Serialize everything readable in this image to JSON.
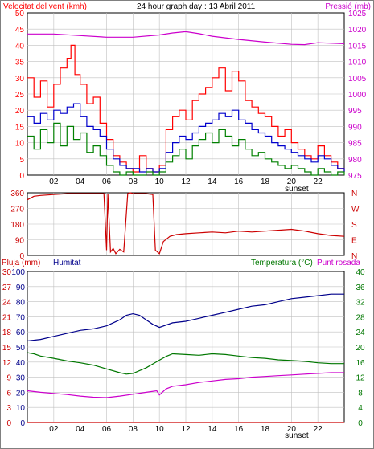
{
  "page": {
    "title": "24 hour graph day : 13 Abril 2011",
    "background": "#ffffff"
  },
  "colors": {
    "wind": "#ff0000",
    "wind_avg": "#0000cc",
    "wind_low": "#008000",
    "pressure": "#cc00cc",
    "direction": "#cc0000",
    "humidity": "#00008b",
    "temperature": "#007700",
    "dewpoint": "#cc00cc",
    "rain": "#cc0000",
    "grid": "#c0c0c0"
  },
  "chart_data": [
    {
      "type": "line",
      "name": "wind-pressure",
      "title": "24 hour graph day : 13 Abril 2011",
      "left_label": "Velocitat del vent (kmh)",
      "right_label": "Pressió (mb)",
      "left_ylim": [
        0,
        50
      ],
      "left_ticks": [
        "0",
        "5",
        "10",
        "15",
        "20",
        "25",
        "30",
        "35",
        "40",
        "45",
        "50"
      ],
      "right_ylim": [
        975,
        1025
      ],
      "right_ticks": [
        "975",
        "980",
        "985",
        "990",
        "995",
        "1000",
        "1005",
        "1010",
        "1015",
        "1020",
        "1025"
      ],
      "xlim": [
        0,
        24
      ],
      "x_ticks": [
        "02",
        "04",
        "06",
        "08",
        "10",
        "12",
        "14",
        "16",
        "18",
        "20",
        "22"
      ],
      "x_tick_positions": [
        2,
        4,
        6,
        8,
        10,
        12,
        14,
        16,
        18,
        20,
        22
      ],
      "marker_label": "sunset",
      "marker_x": 20.4,
      "grid": true,
      "series": [
        {
          "axis": "left",
          "color": "#ff0000",
          "x": [
            0,
            0.5,
            1,
            1.5,
            2,
            2.5,
            3,
            3.3,
            3.6,
            4,
            4.5,
            5,
            5.5,
            6,
            6.5,
            7,
            7.5,
            8,
            8.5,
            9,
            9.5,
            10,
            10.5,
            11,
            11.5,
            12,
            12.5,
            13,
            13.5,
            14,
            14.5,
            15,
            15.5,
            16,
            16.5,
            17,
            17.5,
            18,
            18.5,
            19,
            19.5,
            20,
            20.5,
            21,
            21.5,
            22,
            22.5,
            23,
            23.5,
            24
          ],
          "y": [
            30,
            24,
            29,
            21,
            28,
            33,
            36,
            40,
            31,
            28,
            22,
            24,
            16,
            11,
            6,
            4,
            2,
            1,
            6,
            2,
            1,
            3,
            14,
            18,
            20,
            17,
            23,
            25,
            27,
            30,
            33,
            26,
            32,
            29,
            23,
            21,
            19,
            18,
            15,
            12,
            14,
            10,
            8,
            6,
            5,
            9,
            6,
            4,
            2,
            1
          ]
        },
        {
          "axis": "left",
          "color": "#0000cc",
          "x": [
            0,
            0.5,
            1,
            1.5,
            2,
            2.5,
            3,
            3.5,
            4,
            4.5,
            5,
            5.5,
            6,
            6.5,
            7,
            7.5,
            8,
            8.5,
            9,
            9.5,
            10,
            10.5,
            11,
            11.5,
            12,
            12.5,
            13,
            13.5,
            14,
            14.5,
            15,
            15.5,
            16,
            16.5,
            17,
            17.5,
            18,
            18.5,
            19,
            19.5,
            20,
            20.5,
            21,
            21.5,
            22,
            22.5,
            23,
            23.5,
            24
          ],
          "y": [
            18,
            16,
            19,
            17,
            20,
            19,
            21,
            22,
            18,
            15,
            14,
            12,
            8,
            5,
            3,
            2,
            2,
            1,
            2,
            1,
            2,
            7,
            10,
            12,
            11,
            13,
            15,
            16,
            17,
            19,
            18,
            20,
            17,
            16,
            14,
            13,
            12,
            10,
            9,
            8,
            7,
            6,
            5,
            4,
            6,
            5,
            3,
            2,
            1
          ]
        },
        {
          "axis": "left",
          "color": "#008000",
          "x": [
            0,
            0.5,
            1,
            1.5,
            2,
            2.5,
            3,
            3.5,
            4,
            4.5,
            5,
            5.5,
            6,
            6.5,
            7,
            7.5,
            8,
            8.5,
            9,
            9.5,
            10,
            10.5,
            11,
            11.5,
            12,
            12.5,
            13,
            13.5,
            14,
            14.5,
            15,
            15.5,
            16,
            16.5,
            17,
            17.5,
            18,
            18.5,
            19,
            19.5,
            20,
            20.5,
            21,
            21.5,
            22,
            22.5,
            23,
            23.5,
            24
          ],
          "y": [
            12,
            8,
            14,
            10,
            16,
            9,
            15,
            11,
            13,
            7,
            9,
            6,
            3,
            1,
            0,
            1,
            0,
            0,
            1,
            0,
            1,
            4,
            6,
            8,
            5,
            9,
            11,
            13,
            10,
            14,
            12,
            9,
            11,
            8,
            6,
            7,
            5,
            4,
            3,
            2,
            3,
            2,
            1,
            0,
            2,
            1,
            0,
            1,
            0
          ]
        },
        {
          "axis": "right",
          "color": "#cc00cc",
          "x": [
            0,
            2,
            4,
            6,
            8,
            10,
            11,
            12,
            13,
            14,
            16,
            18,
            20,
            21,
            22,
            24
          ],
          "y": [
            1018.5,
            1018.5,
            1018,
            1017.5,
            1017.5,
            1018.2,
            1018.8,
            1019.2,
            1018.6,
            1017.8,
            1016.8,
            1016,
            1015.3,
            1015.2,
            1015.8,
            1015.5
          ]
        }
      ]
    },
    {
      "type": "line",
      "name": "wind-direction",
      "left_ylim": [
        0,
        360
      ],
      "left_ticks": [
        "0",
        "90",
        "180",
        "270",
        "360"
      ],
      "right_ticks": [
        "N",
        "E",
        "S",
        "W",
        "N"
      ],
      "xlim": [
        0,
        24
      ],
      "grid": true,
      "series": [
        {
          "color": "#cc0000",
          "x": [
            0,
            0.5,
            1,
            2,
            3,
            4,
            5,
            5.8,
            6.0,
            6.1,
            6.3,
            6.5,
            6.7,
            7.0,
            7.3,
            7.6,
            7.8,
            8.0,
            9.0,
            9.5,
            9.7,
            10.0,
            10.3,
            10.8,
            11.3,
            12,
            13,
            14,
            15,
            16,
            17,
            18,
            19,
            20,
            21,
            22,
            23,
            24
          ],
          "y": [
            320,
            340,
            345,
            350,
            355,
            355,
            355,
            355,
            30,
            355,
            20,
            40,
            10,
            35,
            20,
            355,
            360,
            355,
            355,
            350,
            30,
            10,
            80,
            110,
            120,
            125,
            130,
            135,
            130,
            140,
            135,
            140,
            145,
            150,
            140,
            125,
            115,
            110
          ]
        }
      ]
    },
    {
      "type": "line",
      "name": "humidity-temperature",
      "left_label": "Pluja (mm)",
      "left_label_2": "Humitat",
      "right_label": "Temperatura (°C)",
      "right_label_2": "Punt rosada",
      "rain_ylim": [
        0,
        30
      ],
      "rain_ticks": [
        "0",
        "3",
        "6",
        "9",
        "12",
        "15",
        "18",
        "21",
        "24",
        "27",
        "30"
      ],
      "humidity_ylim": [
        0,
        100
      ],
      "humidity_ticks": [
        "0",
        "10",
        "20",
        "30",
        "40",
        "50",
        "60",
        "70",
        "80",
        "90",
        "100"
      ],
      "temp_ylim": [
        0,
        40
      ],
      "temp_ticks": [
        "0",
        "4",
        "8",
        "12",
        "16",
        "20",
        "24",
        "28",
        "32",
        "36",
        "40"
      ],
      "xlim": [
        0,
        24
      ],
      "x_ticks": [
        "02",
        "04",
        "06",
        "08",
        "10",
        "12",
        "14",
        "16",
        "18",
        "20",
        "22"
      ],
      "x_tick_positions": [
        2,
        4,
        6,
        8,
        10,
        12,
        14,
        16,
        18,
        20,
        22
      ],
      "marker_label": "sunset",
      "marker_x": 20.4,
      "grid": true,
      "series": [
        {
          "axis": "humidity",
          "color": "#00008b",
          "x": [
            0,
            1,
            2,
            3,
            4,
            5,
            6,
            7,
            7.5,
            8,
            8.5,
            9,
            9.5,
            10,
            11,
            12,
            13,
            14,
            15,
            16,
            17,
            18,
            19,
            20,
            21,
            22,
            23,
            24
          ],
          "y": [
            54,
            55,
            57,
            59,
            61,
            62,
            64,
            68,
            71,
            72,
            71,
            68,
            65,
            63,
            66,
            67,
            69,
            71,
            73,
            75,
            77,
            78,
            80,
            82,
            83,
            84,
            85,
            85
          ]
        },
        {
          "axis": "temp",
          "color": "#007700",
          "x": [
            0,
            0.5,
            1,
            2,
            3,
            4,
            5,
            6,
            7,
            7.5,
            8,
            9,
            10,
            10.5,
            11,
            12,
            13,
            14,
            15,
            16,
            17,
            18,
            19,
            20,
            21,
            22,
            23,
            24
          ],
          "y": [
            18.5,
            18.2,
            17.6,
            17,
            16.3,
            15.8,
            15.2,
            14.2,
            13.2,
            12.8,
            13,
            14.5,
            16.5,
            17.5,
            18.2,
            18,
            17.8,
            18.2,
            18,
            17.6,
            17.2,
            17.0,
            16.6,
            16.4,
            16.2,
            15.8,
            15.6,
            15.6
          ]
        },
        {
          "axis": "temp",
          "color": "#cc00cc",
          "x": [
            0,
            1,
            2,
            3,
            4,
            5,
            6,
            7,
            8,
            9,
            9.8,
            10,
            10.5,
            11,
            12,
            13,
            14,
            15,
            16,
            17,
            18,
            19,
            20,
            21,
            22,
            23,
            24
          ],
          "y": [
            8.4,
            8.0,
            7.7,
            7.4,
            7.0,
            6.7,
            6.6,
            7.0,
            7.5,
            8.0,
            8.4,
            7.3,
            8.9,
            9.6,
            10,
            10.6,
            11,
            11.4,
            11.6,
            12,
            12.2,
            12.4,
            12.6,
            12.8,
            13,
            13.2,
            13.2
          ]
        },
        {
          "axis": "rain",
          "color": "#cc0000",
          "x": [
            0,
            24
          ],
          "y": [
            0,
            0
          ]
        }
      ]
    }
  ]
}
